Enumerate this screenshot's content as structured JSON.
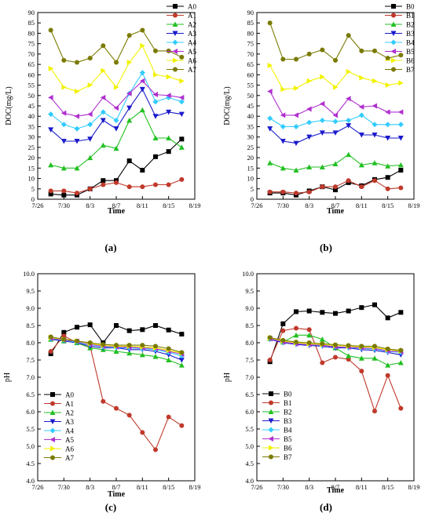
{
  "chart_data": [
    {
      "panel": "(a)",
      "type": "line",
      "xlabel": "Time",
      "ylabel": "DOC(mg/L)",
      "xlim": [
        "7/26",
        "8/19"
      ],
      "ylim": [
        0,
        90
      ],
      "x_ticks": [
        "7/26",
        "7/30",
        "8/3",
        "8/7",
        "8/11",
        "8/15",
        "8/19"
      ],
      "y_ticks": [
        "0",
        "5",
        "10",
        "15",
        "20",
        "25",
        "30",
        "35",
        "40",
        "45",
        "50",
        "55",
        "60",
        "65",
        "70",
        "75",
        "80",
        "85",
        "90"
      ],
      "legend_position": "top-right",
      "x": [
        "7/28",
        "7/30",
        "8/1",
        "8/3",
        "8/5",
        "8/7",
        "8/9",
        "8/11",
        "8/13",
        "8/15",
        "8/17"
      ],
      "series": [
        {
          "name": "A0",
          "color": "#000000",
          "marker": "square",
          "values": [
            2.5,
            2,
            2,
            5,
            9,
            9,
            18.5,
            14,
            20.5,
            23,
            29
          ]
        },
        {
          "name": "A1",
          "color": "#c0392b",
          "marker": "circle",
          "values": [
            4,
            4,
            3,
            5,
            7,
            8,
            6,
            6,
            7,
            7,
            9.5
          ]
        },
        {
          "name": "A2",
          "color": "#22c022",
          "marker": "triangle-up",
          "values": [
            16.5,
            15,
            15,
            20,
            26,
            24.5,
            38,
            43,
            29.5,
            29.5,
            25
          ]
        },
        {
          "name": "A3",
          "color": "#1a1acc",
          "marker": "triangle-down",
          "values": [
            33.5,
            28,
            28,
            29,
            38,
            34,
            44,
            53,
            40,
            42,
            41
          ]
        },
        {
          "name": "A4",
          "color": "#33ccff",
          "marker": "diamond",
          "values": [
            41,
            36,
            34,
            36,
            42,
            38,
            51,
            61,
            47,
            49,
            47
          ]
        },
        {
          "name": "A5",
          "color": "#b030d0",
          "marker": "triangle-left",
          "values": [
            49,
            41.5,
            40,
            41,
            49,
            44,
            51,
            57,
            50.5,
            50,
            49
          ]
        },
        {
          "name": "A6",
          "color": "#f2f200",
          "marker": "triangle-right",
          "values": [
            63,
            54,
            52,
            55,
            62,
            54,
            66,
            74,
            60,
            59,
            57
          ]
        },
        {
          "name": "A7",
          "color": "#7a7a00",
          "marker": "circle",
          "values": [
            81.5,
            67,
            66,
            68,
            74,
            66,
            79,
            81.5,
            71.5,
            71.5,
            68.5
          ]
        }
      ]
    },
    {
      "panel": "(b)",
      "type": "line",
      "xlabel": "Time",
      "ylabel": "DOC(mg/L)",
      "xlim": [
        "7/26",
        "8/19"
      ],
      "ylim": [
        0,
        90
      ],
      "x_ticks": [
        "7/26",
        "7/30",
        "8/3",
        "8/7",
        "8/11",
        "8/15",
        "8/19"
      ],
      "y_ticks": [
        "0",
        "5",
        "10",
        "15",
        "20",
        "25",
        "30",
        "35",
        "40",
        "45",
        "50",
        "55",
        "60",
        "65",
        "70",
        "75",
        "80",
        "85",
        "90"
      ],
      "legend_position": "top-right",
      "x": [
        "7/28",
        "7/30",
        "8/1",
        "8/3",
        "8/5",
        "8/7",
        "8/9",
        "8/11",
        "8/13",
        "8/15",
        "8/17"
      ],
      "series": [
        {
          "name": "B0",
          "color": "#000000",
          "marker": "square",
          "values": [
            3,
            3,
            2,
            4,
            6,
            4.5,
            8,
            6.5,
            9.5,
            10.5,
            14
          ]
        },
        {
          "name": "B1",
          "color": "#c0392b",
          "marker": "circle",
          "values": [
            3.5,
            3.5,
            3,
            3.5,
            6,
            6,
            9,
            6,
            9,
            5,
            5.5
          ]
        },
        {
          "name": "B2",
          "color": "#22c022",
          "marker": "triangle-up",
          "values": [
            17.5,
            15,
            14,
            15.5,
            15.5,
            17,
            21.5,
            16.5,
            17.5,
            16,
            16.5
          ]
        },
        {
          "name": "B3",
          "color": "#1a1acc",
          "marker": "triangle-down",
          "values": [
            34,
            28,
            27,
            30,
            32,
            32,
            35.5,
            31,
            31,
            29.5,
            29.5
          ]
        },
        {
          "name": "B4",
          "color": "#33ccff",
          "marker": "diamond",
          "values": [
            39,
            35,
            35,
            37,
            38,
            37.5,
            38,
            40.5,
            36,
            36,
            36
          ]
        },
        {
          "name": "B5",
          "color": "#b030d0",
          "marker": "triangle-left",
          "values": [
            52,
            40.5,
            40.5,
            43.5,
            46,
            40.5,
            48.5,
            44.5,
            45,
            42,
            42
          ]
        },
        {
          "name": "B6",
          "color": "#f2f200",
          "marker": "triangle-right",
          "values": [
            64.5,
            53,
            53.5,
            57,
            59,
            54,
            61.5,
            58.5,
            57,
            55,
            56
          ]
        },
        {
          "name": "B7",
          "color": "#7a7a00",
          "marker": "circle",
          "values": [
            85,
            67.5,
            67.5,
            70,
            72,
            67,
            79,
            71.5,
            71.5,
            68,
            69.5
          ]
        }
      ]
    },
    {
      "panel": "(c)",
      "type": "line",
      "xlabel": "Time",
      "ylabel": "pH",
      "xlim": [
        "7/26",
        "8/19"
      ],
      "ylim": [
        4.0,
        10.0
      ],
      "x_ticks": [
        "7/26",
        "7/30",
        "8/3",
        "8/7",
        "8/11",
        "8/15",
        "8/19"
      ],
      "y_ticks": [
        "4.0",
        "4.5",
        "5.0",
        "5.5",
        "6.0",
        "6.5",
        "7.0",
        "7.5",
        "8.0",
        "8.5",
        "9.0",
        "9.5",
        "10.0"
      ],
      "legend_position": "bottom-left",
      "x": [
        "7/28",
        "7/30",
        "8/1",
        "8/3",
        "8/5",
        "8/7",
        "8/9",
        "8/11",
        "8/13",
        "8/15",
        "8/17"
      ],
      "series": [
        {
          "name": "A0",
          "color": "#000000",
          "marker": "square",
          "values": [
            7.68,
            8.3,
            8.45,
            8.52,
            8.0,
            8.5,
            8.35,
            8.38,
            8.5,
            8.37,
            8.25
          ]
        },
        {
          "name": "A1",
          "color": "#c0392b",
          "marker": "circle",
          "values": [
            7.75,
            8.2,
            8.0,
            7.9,
            6.3,
            6.1,
            5.9,
            5.4,
            4.9,
            5.85,
            5.6
          ]
        },
        {
          "name": "A2",
          "color": "#22c022",
          "marker": "triangle-up",
          "values": [
            8.1,
            8.05,
            8.0,
            7.85,
            7.8,
            7.75,
            7.7,
            7.65,
            7.6,
            7.5,
            7.35
          ]
        },
        {
          "name": "A3",
          "color": "#1a1acc",
          "marker": "triangle-down",
          "values": [
            8.1,
            8.05,
            8.0,
            7.9,
            7.85,
            7.85,
            7.8,
            7.8,
            7.75,
            7.65,
            7.5
          ]
        },
        {
          "name": "A4",
          "color": "#33ccff",
          "marker": "diamond",
          "values": [
            8.12,
            8.07,
            8.02,
            7.95,
            7.88,
            7.86,
            7.85,
            7.83,
            7.8,
            7.72,
            7.62
          ]
        },
        {
          "name": "A5",
          "color": "#b030d0",
          "marker": "triangle-left",
          "values": [
            8.13,
            8.08,
            8.04,
            7.96,
            7.9,
            7.88,
            7.87,
            7.85,
            7.83,
            7.75,
            7.67
          ]
        },
        {
          "name": "A6",
          "color": "#f2f200",
          "marker": "triangle-right",
          "values": [
            8.15,
            8.1,
            8.05,
            7.98,
            7.92,
            7.9,
            7.9,
            7.88,
            7.85,
            7.78,
            7.7
          ]
        },
        {
          "name": "A7",
          "color": "#7a7a00",
          "marker": "circle",
          "values": [
            8.17,
            8.1,
            8.05,
            8.0,
            7.95,
            7.93,
            7.93,
            7.93,
            7.9,
            7.83,
            7.72
          ]
        }
      ]
    },
    {
      "panel": "(d)",
      "type": "line",
      "xlabel": "Time",
      "ylabel": "pH",
      "xlim": [
        "7/26",
        "8/19"
      ],
      "ylim": [
        4.0,
        10.0
      ],
      "x_ticks": [
        "7/26",
        "7/30",
        "8/3",
        "8/7",
        "8/11",
        "8/15",
        "8/19"
      ],
      "y_ticks": [
        "4.0",
        "4.5",
        "5.0",
        "5.5",
        "6.0",
        "6.5",
        "7.0",
        "7.5",
        "8.0",
        "8.5",
        "9.0",
        "9.5",
        "10.0"
      ],
      "legend_position": "bottom-left",
      "x": [
        "7/28",
        "7/30",
        "8/1",
        "8/3",
        "8/5",
        "8/7",
        "8/9",
        "8/11",
        "8/13",
        "8/15",
        "8/17"
      ],
      "series": [
        {
          "name": "B0",
          "color": "#000000",
          "marker": "square",
          "values": [
            7.45,
            8.55,
            8.9,
            8.92,
            8.88,
            8.85,
            8.92,
            9.02,
            9.1,
            8.72,
            8.88
          ]
        },
        {
          "name": "B1",
          "color": "#c0392b",
          "marker": "circle",
          "values": [
            7.5,
            8.35,
            8.42,
            8.38,
            7.42,
            7.58,
            7.52,
            7.18,
            6.02,
            7.05,
            6.1
          ]
        },
        {
          "name": "B2",
          "color": "#22c022",
          "marker": "triangle-up",
          "values": [
            8.12,
            8.02,
            8.22,
            8.22,
            8.1,
            7.85,
            7.62,
            7.55,
            7.55,
            7.35,
            7.42
          ]
        },
        {
          "name": "B3",
          "color": "#1a1acc",
          "marker": "triangle-down",
          "values": [
            8.1,
            8.0,
            7.95,
            7.92,
            7.9,
            7.85,
            7.85,
            7.8,
            7.78,
            7.72,
            7.65
          ]
        },
        {
          "name": "B4",
          "color": "#33ccff",
          "marker": "diamond",
          "values": [
            8.12,
            8.02,
            7.97,
            7.95,
            7.92,
            7.88,
            7.86,
            7.84,
            7.82,
            7.75,
            7.72
          ]
        },
        {
          "name": "B5",
          "color": "#b030d0",
          "marker": "triangle-left",
          "values": [
            8.12,
            8.02,
            7.97,
            7.95,
            7.93,
            7.88,
            7.87,
            7.85,
            7.84,
            7.76,
            7.74
          ]
        },
        {
          "name": "B6",
          "color": "#f2f200",
          "marker": "triangle-right",
          "values": [
            8.14,
            8.05,
            8.0,
            7.97,
            7.95,
            7.92,
            7.9,
            7.88,
            7.86,
            7.8,
            7.76
          ]
        },
        {
          "name": "B7",
          "color": "#7a7a00",
          "marker": "circle",
          "values": [
            8.15,
            8.07,
            8.02,
            8.0,
            7.97,
            7.94,
            7.92,
            7.9,
            7.9,
            7.82,
            7.78
          ]
        }
      ]
    }
  ]
}
